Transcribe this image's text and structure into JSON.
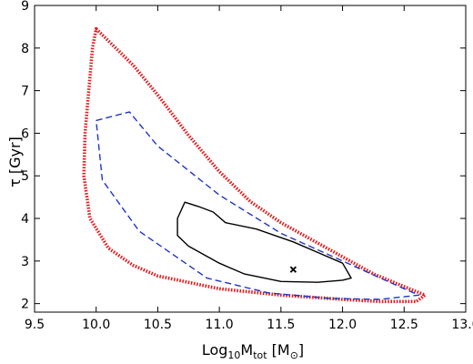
{
  "chart_data": {
    "type": "line",
    "xlabel": "Log10Mtot [M⊙]",
    "ylabel": "τ [Gyr]",
    "xlim": [
      9.5,
      13.0
    ],
    "ylim": [
      1.8,
      9.0
    ],
    "xticks": [
      9.5,
      10.0,
      10.5,
      11.0,
      11.5,
      12.0,
      12.5,
      13.0
    ],
    "yticks": [
      2,
      3,
      4,
      5,
      6,
      7,
      8,
      9
    ],
    "grid": false,
    "legend": "none",
    "series": [
      {
        "style": "dotted",
        "color": "#e41a1c",
        "closed": true,
        "points": [
          [
            10.0,
            8.45
          ],
          [
            10.3,
            7.6
          ],
          [
            10.5,
            6.9
          ],
          [
            10.75,
            5.95
          ],
          [
            11.0,
            5.1
          ],
          [
            11.25,
            4.4
          ],
          [
            11.5,
            3.9
          ],
          [
            11.75,
            3.5
          ],
          [
            12.0,
            3.1
          ],
          [
            12.25,
            2.7
          ],
          [
            12.5,
            2.4
          ],
          [
            12.67,
            2.2
          ],
          [
            12.6,
            2.05
          ],
          [
            12.3,
            2.05
          ],
          [
            12.0,
            2.1
          ],
          [
            11.5,
            2.2
          ],
          [
            11.0,
            2.35
          ],
          [
            10.5,
            2.65
          ],
          [
            10.3,
            2.9
          ],
          [
            10.1,
            3.3
          ],
          [
            9.95,
            4.0
          ],
          [
            9.9,
            5.0
          ],
          [
            9.91,
            6.0
          ],
          [
            9.94,
            7.0
          ],
          [
            9.97,
            8.0
          ]
        ]
      },
      {
        "style": "dashed",
        "color": "#1f35c8",
        "closed": true,
        "points": [
          [
            10.0,
            6.3
          ],
          [
            10.27,
            6.5
          ],
          [
            10.5,
            5.7
          ],
          [
            11.0,
            4.55
          ],
          [
            11.5,
            3.65
          ],
          [
            12.0,
            3.0
          ],
          [
            12.5,
            2.35
          ],
          [
            12.62,
            2.2
          ],
          [
            12.3,
            2.1
          ],
          [
            11.9,
            2.12
          ],
          [
            11.4,
            2.25
          ],
          [
            10.9,
            2.6
          ],
          [
            10.35,
            3.7
          ],
          [
            10.05,
            4.9
          ]
        ]
      },
      {
        "style": "solid",
        "color": "#000000",
        "closed": true,
        "points": [
          [
            10.66,
            4.0
          ],
          [
            10.72,
            4.38
          ],
          [
            10.83,
            4.28
          ],
          [
            10.95,
            4.15
          ],
          [
            11.05,
            3.9
          ],
          [
            11.3,
            3.75
          ],
          [
            11.6,
            3.45
          ],
          [
            11.8,
            3.2
          ],
          [
            12.0,
            2.95
          ],
          [
            12.07,
            2.6
          ],
          [
            12.0,
            2.55
          ],
          [
            11.8,
            2.5
          ],
          [
            11.5,
            2.52
          ],
          [
            11.2,
            2.7
          ],
          [
            11.0,
            2.95
          ],
          [
            10.75,
            3.35
          ],
          [
            10.66,
            3.6
          ]
        ]
      }
    ],
    "markers": [
      {
        "x": 11.6,
        "y": 2.8,
        "symbol": "x",
        "color": "#000000"
      }
    ]
  }
}
